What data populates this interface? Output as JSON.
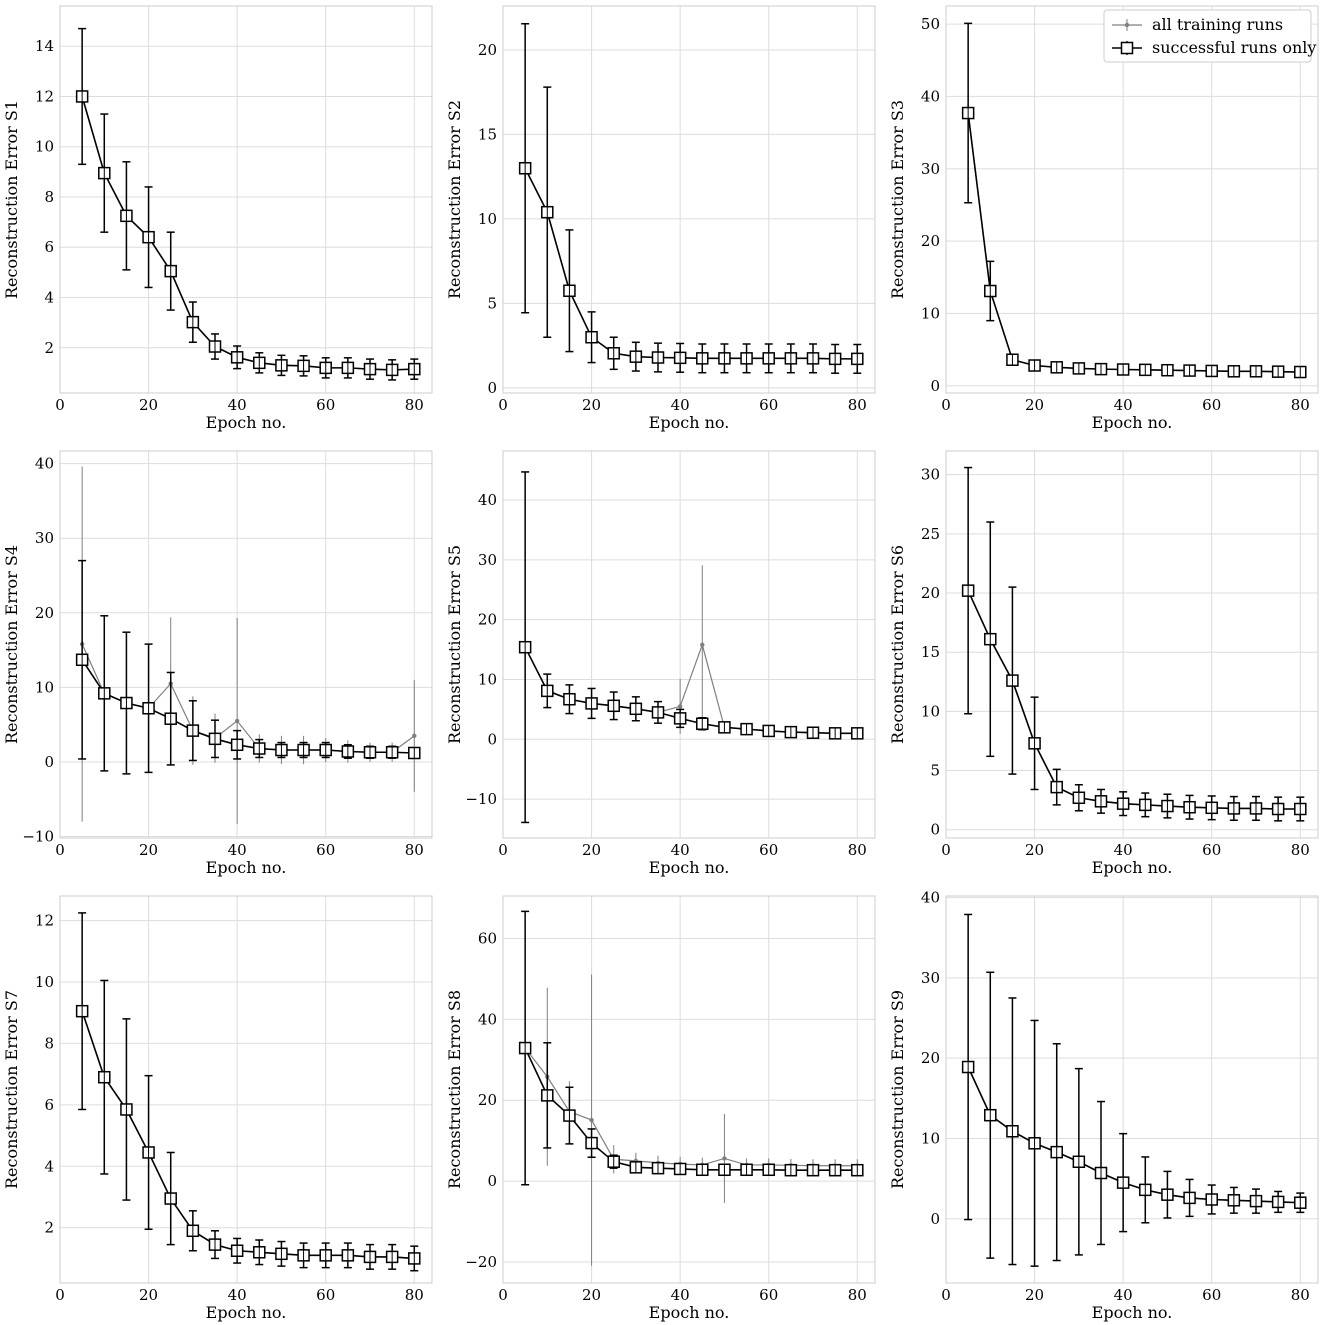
{
  "legend": {
    "all_label": "all training runs",
    "succ_label": "successful runs only"
  },
  "colors": {
    "all": "#7f7f7f",
    "successful": "#000000",
    "grid": "#dddddd",
    "frame": "#cccccc"
  },
  "chart_data": [
    {
      "type": "line",
      "title": "",
      "xlabel": "Epoch no.",
      "ylabel": "Reconstruction Error S1",
      "xlim": [
        0,
        84
      ],
      "ylim": [
        0.2,
        15.6
      ],
      "xticks": [
        0,
        20,
        40,
        60,
        80
      ],
      "yticks": [
        2,
        4,
        6,
        8,
        10,
        12,
        14
      ],
      "x": [
        5,
        10,
        15,
        20,
        25,
        30,
        35,
        40,
        45,
        50,
        55,
        60,
        65,
        70,
        75,
        80
      ],
      "series": [
        {
          "name": "all training runs",
          "values": [
            12.0,
            8.95,
            7.25,
            6.4,
            5.05,
            3.02,
            2.05,
            1.62,
            1.4,
            1.3,
            1.28,
            1.2,
            1.2,
            1.15,
            1.12,
            1.15
          ],
          "errors": [
            2.7,
            2.35,
            2.15,
            2.0,
            1.55,
            0.8,
            0.5,
            0.45,
            0.4,
            0.4,
            0.4,
            0.4,
            0.4,
            0.4,
            0.4,
            0.4
          ]
        },
        {
          "name": "successful runs only",
          "values": [
            12.0,
            8.95,
            7.25,
            6.4,
            5.05,
            3.02,
            2.05,
            1.62,
            1.4,
            1.3,
            1.28,
            1.2,
            1.2,
            1.15,
            1.12,
            1.15
          ],
          "errors": [
            2.7,
            2.35,
            2.15,
            2.0,
            1.55,
            0.8,
            0.5,
            0.45,
            0.4,
            0.4,
            0.4,
            0.4,
            0.4,
            0.4,
            0.4,
            0.4
          ]
        }
      ]
    },
    {
      "type": "line",
      "title": "",
      "xlabel": "Epoch no.",
      "ylabel": "Reconstruction Error S2",
      "xlim": [
        0,
        84
      ],
      "ylim": [
        -0.3,
        22.6
      ],
      "xticks": [
        0,
        20,
        40,
        60,
        80
      ],
      "yticks": [
        0,
        5,
        10,
        15,
        20
      ],
      "x": [
        5,
        10,
        15,
        20,
        25,
        30,
        35,
        40,
        45,
        50,
        55,
        60,
        65,
        70,
        75,
        80
      ],
      "series": [
        {
          "name": "all training runs",
          "values": [
            13.0,
            10.4,
            5.75,
            3.0,
            2.05,
            1.85,
            1.8,
            1.78,
            1.75,
            1.75,
            1.75,
            1.75,
            1.75,
            1.75,
            1.72,
            1.72
          ],
          "errors": [
            8.55,
            7.4,
            3.6,
            1.5,
            0.95,
            0.85,
            0.85,
            0.85,
            0.85,
            0.85,
            0.85,
            0.85,
            0.85,
            0.85,
            0.85,
            0.85
          ]
        },
        {
          "name": "successful runs only",
          "values": [
            13.0,
            10.4,
            5.75,
            3.0,
            2.05,
            1.85,
            1.8,
            1.78,
            1.75,
            1.75,
            1.75,
            1.75,
            1.75,
            1.75,
            1.72,
            1.72
          ],
          "errors": [
            8.55,
            7.4,
            3.6,
            1.5,
            0.95,
            0.85,
            0.85,
            0.85,
            0.85,
            0.85,
            0.85,
            0.85,
            0.85,
            0.85,
            0.85,
            0.85
          ]
        }
      ]
    },
    {
      "type": "line",
      "title": "",
      "xlabel": "Epoch no.",
      "ylabel": "Reconstruction Error S3",
      "xlim": [
        0,
        84
      ],
      "ylim": [
        -1.0,
        52.5
      ],
      "xticks": [
        0,
        20,
        40,
        60,
        80
      ],
      "yticks": [
        0,
        10,
        20,
        30,
        40,
        50
      ],
      "x": [
        5,
        10,
        15,
        20,
        25,
        30,
        35,
        40,
        45,
        50,
        55,
        60,
        65,
        70,
        75,
        80
      ],
      "series": [
        {
          "name": "all training runs",
          "values": [
            37.7,
            13.1,
            3.6,
            2.8,
            2.55,
            2.4,
            2.3,
            2.25,
            2.2,
            2.15,
            2.1,
            2.05,
            2.0,
            2.0,
            1.95,
            1.9
          ],
          "errors": [
            12.4,
            4.1,
            0.7,
            0.4,
            0.35,
            0.3,
            0.3,
            0.3,
            0.3,
            0.3,
            0.3,
            0.3,
            0.3,
            0.3,
            0.3,
            0.3
          ]
        },
        {
          "name": "successful runs only",
          "values": [
            37.7,
            13.1,
            3.6,
            2.8,
            2.55,
            2.4,
            2.3,
            2.25,
            2.2,
            2.15,
            2.1,
            2.05,
            2.0,
            2.0,
            1.95,
            1.9
          ],
          "errors": [
            12.4,
            4.1,
            0.7,
            0.4,
            0.35,
            0.3,
            0.3,
            0.3,
            0.3,
            0.3,
            0.3,
            0.3,
            0.3,
            0.3,
            0.3,
            0.3
          ]
        }
      ]
    },
    {
      "type": "line",
      "title": "",
      "xlabel": "Epoch no.",
      "ylabel": "Reconstruction Error S4",
      "xlim": [
        0,
        84
      ],
      "ylim": [
        -10.2,
        41.7
      ],
      "xticks": [
        0,
        20,
        40,
        60,
        80
      ],
      "yticks": [
        -10,
        0,
        10,
        20,
        30,
        40
      ],
      "x": [
        5,
        10,
        15,
        20,
        25,
        30,
        35,
        40,
        45,
        50,
        55,
        60,
        65,
        70,
        75,
        80
      ],
      "series": [
        {
          "name": "all training runs",
          "values": [
            15.8,
            9.2,
            7.9,
            7.2,
            10.5,
            4.2,
            3.2,
            5.5,
            1.8,
            1.6,
            1.6,
            1.6,
            1.4,
            1.3,
            1.3,
            3.5
          ],
          "errors": [
            23.8,
            10.4,
            9.5,
            8.6,
            8.9,
            4.6,
            3.3,
            13.8,
            1.9,
            1.9,
            1.9,
            1.6,
            1.5,
            1.3,
            1.3,
            7.5
          ]
        },
        {
          "name": "successful runs only",
          "values": [
            13.7,
            9.2,
            7.9,
            7.2,
            5.8,
            4.2,
            3.1,
            2.3,
            1.8,
            1.6,
            1.6,
            1.6,
            1.4,
            1.3,
            1.3,
            1.2
          ],
          "errors": [
            13.3,
            10.4,
            9.5,
            8.6,
            6.2,
            4.0,
            2.5,
            1.9,
            1.2,
            1.0,
            1.0,
            1.0,
            0.9,
            0.8,
            0.8,
            0.7
          ]
        }
      ]
    },
    {
      "type": "line",
      "title": "",
      "xlabel": "Epoch no.",
      "ylabel": "Reconstruction Error S5",
      "xlim": [
        0,
        84
      ],
      "ylim": [
        -16.5,
        48.2
      ],
      "xticks": [
        0,
        20,
        40,
        60,
        80
      ],
      "yticks": [
        -10,
        0,
        10,
        20,
        30,
        40
      ],
      "x": [
        5,
        10,
        15,
        20,
        25,
        30,
        35,
        40,
        45,
        50,
        55,
        60,
        65,
        70,
        75,
        80
      ],
      "series": [
        {
          "name": "all training runs",
          "values": [
            15.4,
            8.2,
            6.7,
            6.0,
            5.6,
            5.1,
            4.5,
            5.5,
            15.8,
            2.0,
            1.7,
            1.4,
            1.2,
            1.1,
            1.0,
            1.0
          ],
          "errors": [
            28.0,
            2.8,
            2.4,
            2.5,
            2.3,
            2.0,
            1.8,
            4.6,
            13.3,
            0.7,
            0.6,
            0.5,
            0.5,
            0.5,
            0.4,
            0.4
          ]
        },
        {
          "name": "successful runs only",
          "values": [
            15.4,
            8.1,
            6.7,
            6.0,
            5.6,
            5.1,
            4.5,
            3.5,
            2.6,
            2.0,
            1.7,
            1.4,
            1.2,
            1.1,
            1.0,
            1.0
          ],
          "errors": [
            29.3,
            2.8,
            2.4,
            2.5,
            2.3,
            2.0,
            1.8,
            1.5,
            1.0,
            0.7,
            0.6,
            0.5,
            0.5,
            0.5,
            0.4,
            0.4
          ]
        }
      ]
    },
    {
      "type": "line",
      "title": "",
      "xlabel": "Epoch no.",
      "ylabel": "Reconstruction Error S6",
      "xlim": [
        0,
        84
      ],
      "ylim": [
        -0.7,
        32.0
      ],
      "xticks": [
        0,
        20,
        40,
        60,
        80
      ],
      "yticks": [
        0,
        5,
        10,
        15,
        20,
        25,
        30
      ],
      "x": [
        5,
        10,
        15,
        20,
        25,
        30,
        35,
        40,
        45,
        50,
        55,
        60,
        65,
        70,
        75,
        80
      ],
      "series": [
        {
          "name": "all training runs",
          "values": [
            20.2,
            16.1,
            12.6,
            7.3,
            3.6,
            2.7,
            2.4,
            2.2,
            2.1,
            2.0,
            1.9,
            1.85,
            1.8,
            1.8,
            1.75,
            1.75
          ],
          "errors": [
            10.4,
            9.9,
            7.9,
            3.9,
            1.5,
            1.1,
            1.0,
            1.0,
            1.0,
            1.0,
            1.0,
            1.0,
            1.0,
            1.0,
            1.0,
            1.0
          ]
        },
        {
          "name": "successful runs only",
          "values": [
            20.2,
            16.1,
            12.6,
            7.3,
            3.6,
            2.7,
            2.4,
            2.2,
            2.1,
            2.0,
            1.9,
            1.85,
            1.8,
            1.8,
            1.75,
            1.75
          ],
          "errors": [
            10.4,
            9.9,
            7.9,
            3.9,
            1.5,
            1.1,
            1.0,
            1.0,
            1.0,
            1.0,
            1.0,
            1.0,
            1.0,
            1.0,
            1.0,
            1.0
          ]
        }
      ]
    },
    {
      "type": "line",
      "title": "",
      "xlabel": "Epoch no.",
      "ylabel": "Reconstruction Error S7",
      "xlim": [
        0,
        84
      ],
      "ylim": [
        0.2,
        12.8
      ],
      "xticks": [
        0,
        20,
        40,
        60,
        80
      ],
      "yticks": [
        2,
        4,
        6,
        8,
        10,
        12
      ],
      "x": [
        5,
        10,
        15,
        20,
        25,
        30,
        35,
        40,
        45,
        50,
        55,
        60,
        65,
        70,
        75,
        80
      ],
      "series": [
        {
          "name": "all training runs",
          "values": [
            9.05,
            6.9,
            5.85,
            4.45,
            2.95,
            1.9,
            1.45,
            1.25,
            1.2,
            1.15,
            1.1,
            1.1,
            1.1,
            1.05,
            1.05,
            1.0
          ],
          "errors": [
            3.2,
            3.15,
            2.95,
            2.5,
            1.5,
            0.65,
            0.45,
            0.4,
            0.4,
            0.4,
            0.4,
            0.4,
            0.4,
            0.4,
            0.4,
            0.4
          ]
        },
        {
          "name": "successful runs only",
          "values": [
            9.05,
            6.9,
            5.85,
            4.45,
            2.95,
            1.9,
            1.45,
            1.25,
            1.2,
            1.15,
            1.1,
            1.1,
            1.1,
            1.05,
            1.05,
            1.0
          ],
          "errors": [
            3.2,
            3.15,
            2.95,
            2.5,
            1.5,
            0.65,
            0.45,
            0.4,
            0.4,
            0.4,
            0.4,
            0.4,
            0.4,
            0.4,
            0.4,
            0.4
          ]
        }
      ]
    },
    {
      "type": "line",
      "title": "",
      "xlabel": "Epoch no.",
      "ylabel": "Reconstruction Error S8",
      "xlim": [
        0,
        84
      ],
      "ylim": [
        -25.2,
        70.5
      ],
      "xticks": [
        0,
        20,
        40,
        60,
        80
      ],
      "yticks": [
        -20,
        0,
        20,
        40,
        60
      ],
      "x": [
        5,
        10,
        15,
        20,
        25,
        30,
        35,
        40,
        45,
        50,
        55,
        60,
        65,
        70,
        75,
        80
      ],
      "series": [
        {
          "name": "all training runs",
          "values": [
            32.9,
            25.8,
            17.2,
            15.1,
            5.4,
            5.0,
            4.5,
            4.2,
            4.0,
            5.6,
            4.0,
            4.0,
            3.9,
            3.8,
            3.8,
            3.8
          ],
          "errors": [
            29.8,
            22.0,
            7.5,
            36.0,
            3.5,
            2.0,
            1.8,
            1.8,
            1.8,
            11.0,
            1.6,
            1.6,
            1.6,
            1.6,
            1.6,
            1.6
          ]
        },
        {
          "name": "successful runs only",
          "values": [
            32.9,
            21.2,
            16.2,
            9.4,
            4.8,
            3.4,
            3.2,
            3.0,
            2.8,
            2.8,
            2.8,
            2.8,
            2.7,
            2.7,
            2.7,
            2.7
          ],
          "errors": [
            33.8,
            13.0,
            7.0,
            3.5,
            1.6,
            1.3,
            1.3,
            1.3,
            1.3,
            1.3,
            1.3,
            1.3,
            1.3,
            1.3,
            1.3,
            1.3
          ]
        }
      ]
    },
    {
      "type": "line",
      "title": "",
      "xlabel": "Epoch no.",
      "ylabel": "Reconstruction Error S9",
      "xlim": [
        0,
        84
      ],
      "ylim": [
        -8.0,
        40.2
      ],
      "xticks": [
        0,
        20,
        40,
        60,
        80
      ],
      "yticks": [
        0,
        10,
        20,
        30,
        40
      ],
      "x": [
        5,
        10,
        15,
        20,
        25,
        30,
        35,
        40,
        45,
        50,
        55,
        60,
        65,
        70,
        75,
        80
      ],
      "series": [
        {
          "name": "all training runs",
          "values": [
            18.9,
            12.9,
            10.9,
            9.4,
            8.3,
            7.1,
            5.7,
            4.5,
            3.6,
            3.0,
            2.6,
            2.4,
            2.3,
            2.2,
            2.1,
            2.0
          ],
          "errors": [
            19.0,
            17.8,
            16.6,
            15.3,
            13.5,
            11.6,
            8.9,
            6.1,
            4.1,
            2.9,
            2.3,
            1.8,
            1.6,
            1.5,
            1.3,
            1.2
          ]
        },
        {
          "name": "successful runs only",
          "values": [
            18.9,
            12.9,
            10.9,
            9.4,
            8.3,
            7.1,
            5.7,
            4.5,
            3.6,
            3.0,
            2.6,
            2.4,
            2.3,
            2.2,
            2.1,
            2.0
          ],
          "errors": [
            19.0,
            17.8,
            16.6,
            15.3,
            13.5,
            11.6,
            8.9,
            6.1,
            4.1,
            2.9,
            2.3,
            1.8,
            1.6,
            1.5,
            1.3,
            1.2
          ]
        }
      ]
    }
  ]
}
